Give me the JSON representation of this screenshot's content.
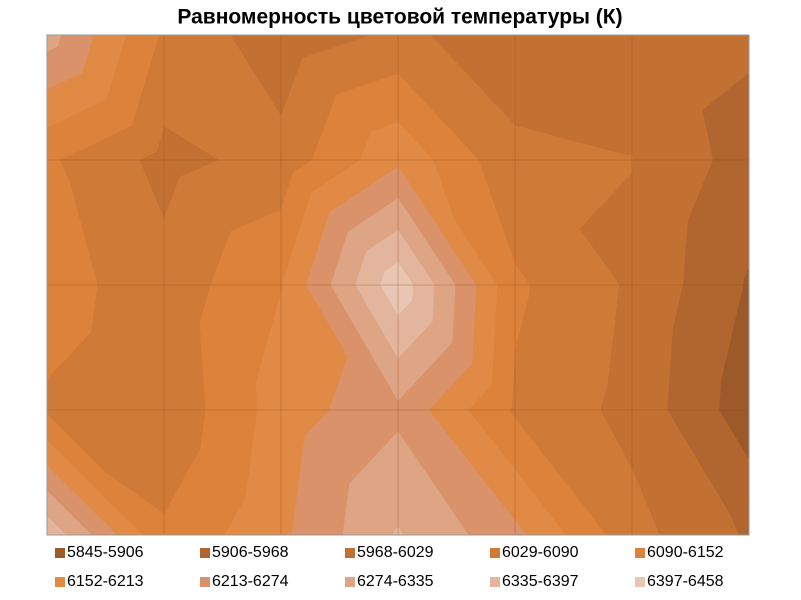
{
  "chart_data": {
    "type": "contour",
    "title": "Равномерность цветовой температуры (К)",
    "levels": [
      5845,
      5906,
      5968,
      6029,
      6090,
      6152,
      6213,
      6274,
      6335,
      6397,
      6458
    ],
    "series": [
      {
        "name": "5845-5906",
        "color": "#9c5a2a"
      },
      {
        "name": "5906-5968",
        "color": "#b0662e"
      },
      {
        "name": "5968-6029",
        "color": "#c27133"
      },
      {
        "name": "6029-6090",
        "color": "#d07a38"
      },
      {
        "name": "6090-6152",
        "color": "#dc823b"
      },
      {
        "name": "6152-6213",
        "color": "#e08a45"
      },
      {
        "name": "6213-6274",
        "color": "#d9926a"
      },
      {
        "name": "6274-6335",
        "color": "#dea584"
      },
      {
        "name": "6335-6397",
        "color": "#e3b59c"
      },
      {
        "name": "6397-6458",
        "color": "#e9c6b4"
      }
    ],
    "z": [
      [
        6300,
        6080,
        5990,
        6040,
        6000,
        6010,
        5980
      ],
      [
        6100,
        6010,
        6050,
        6200,
        6040,
        6030,
        5940
      ],
      [
        6120,
        6050,
        6150,
        6440,
        6100,
        6020,
        5900
      ],
      [
        6080,
        6040,
        6180,
        6260,
        6080,
        6010,
        5870
      ],
      [
        6380,
        6100,
        6200,
        6340,
        6230,
        6050,
        5960
      ]
    ],
    "grid": true
  }
}
